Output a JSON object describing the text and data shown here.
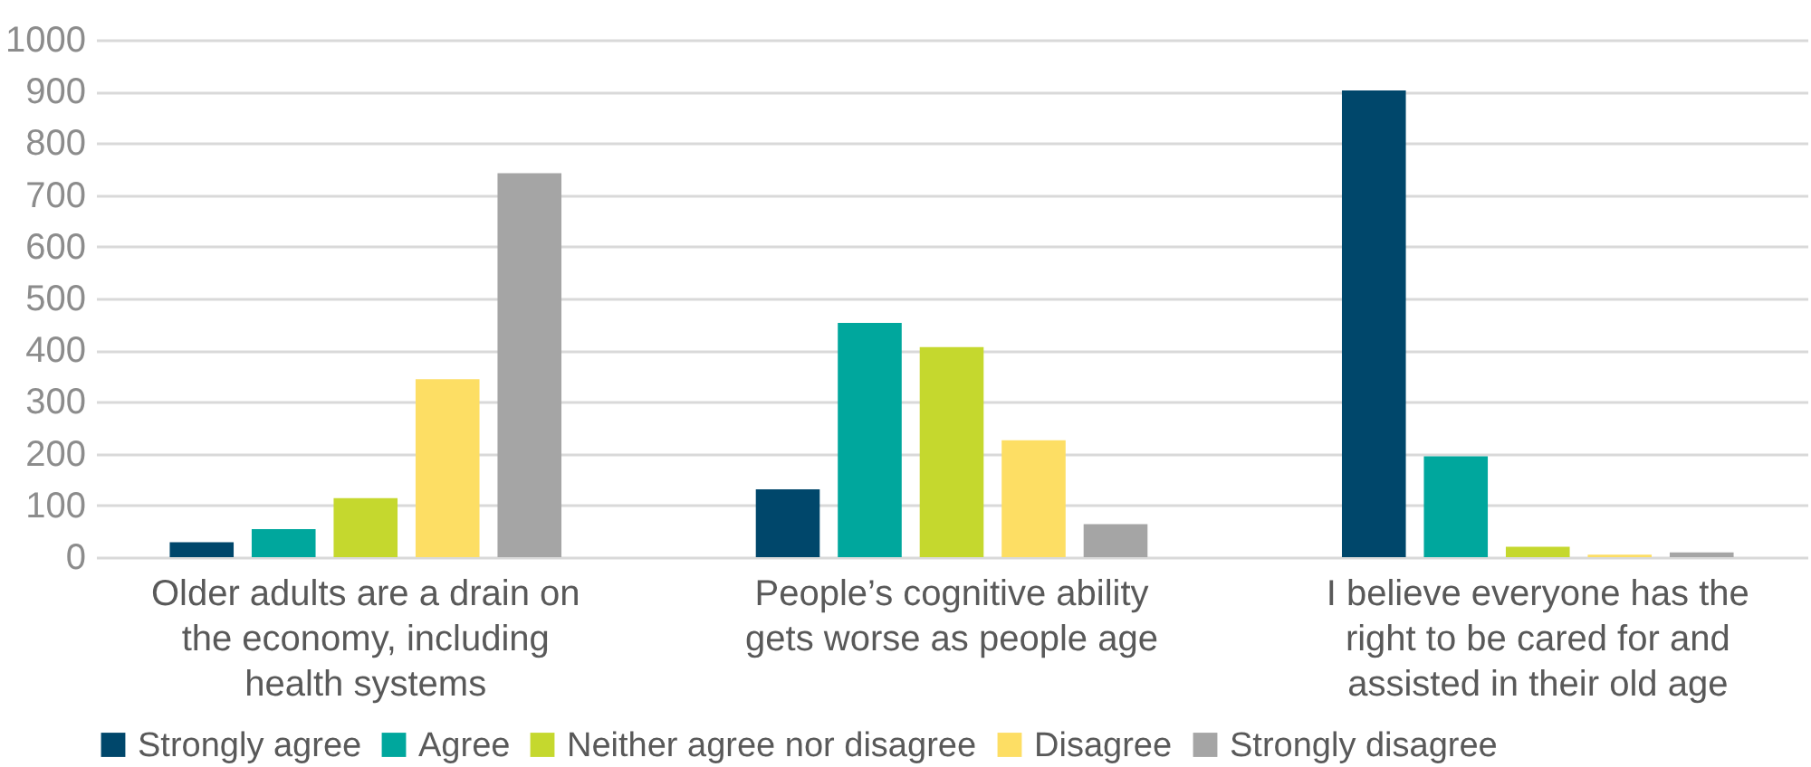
{
  "chart_data": {
    "type": "bar",
    "categories": [
      "Older adults are a drain on the economy, including health systems",
      "People’s cognitive ability gets worse as people age",
      "I believe everyone has the right to be cared for and assisted in their old age"
    ],
    "series": [
      {
        "name": "Strongly agree",
        "color": "#00476b",
        "values": [
          29,
          131,
          902
        ]
      },
      {
        "name": "Agree",
        "color": "#00a79d",
        "values": [
          54,
          453,
          195
        ]
      },
      {
        "name": "Neither agree nor disagree",
        "color": "#c5d82e",
        "values": [
          114,
          406,
          20
        ]
      },
      {
        "name": "Disagree",
        "color": "#fdde64",
        "values": [
          344,
          226,
          5
        ]
      },
      {
        "name": "Strongly disagree",
        "color": "#a5a5a5",
        "values": [
          742,
          64,
          9
        ]
      }
    ],
    "ylim": [
      0,
      1000
    ],
    "yticks": [
      0,
      100,
      200,
      300,
      400,
      500,
      600,
      700,
      800,
      900,
      1000
    ],
    "grid": "y",
    "legend": "bottom"
  }
}
